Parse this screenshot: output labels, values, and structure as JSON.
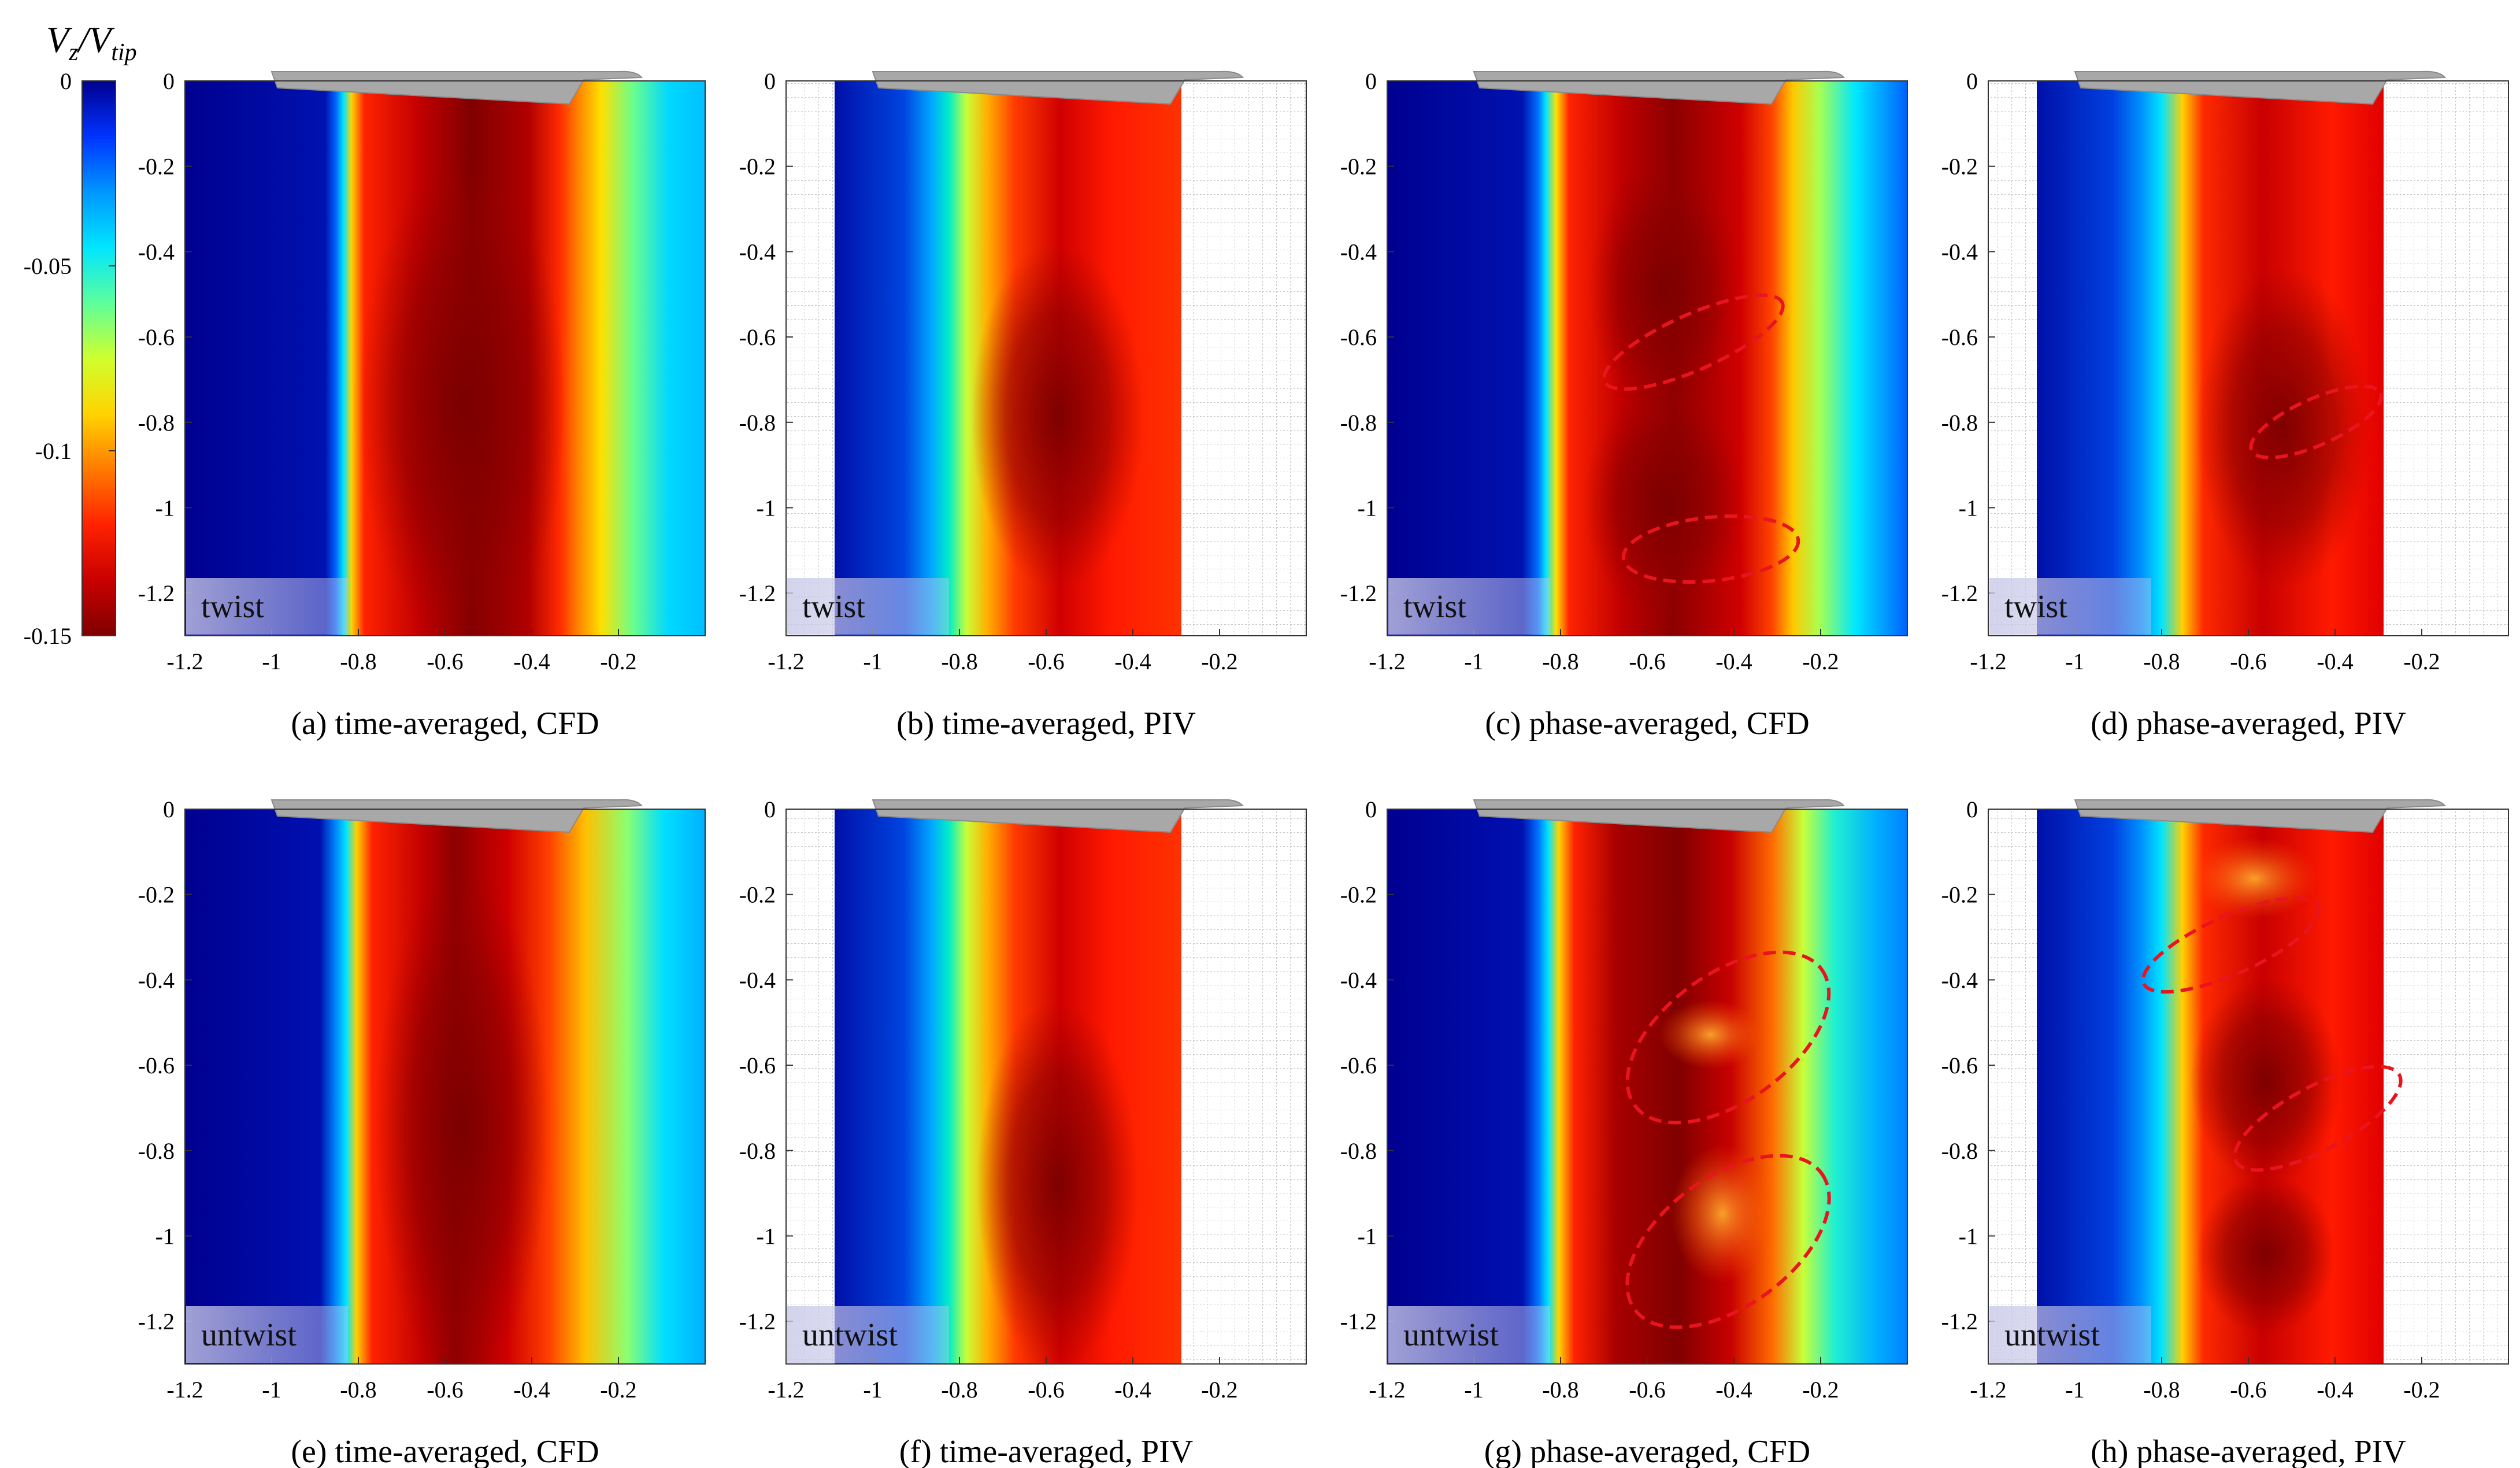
{
  "colorbar": {
    "title_main": "V",
    "title_sub1": "z",
    "title_sep": "/V",
    "title_sub2": "tip",
    "ticks": [
      {
        "value": 0,
        "label": "0"
      },
      {
        "value": -0.05,
        "label": "-0.05"
      },
      {
        "value": -0.1,
        "label": "-0.1"
      },
      {
        "value": -0.15,
        "label": "-0.15"
      }
    ],
    "range": [
      -0.15,
      0
    ],
    "colormap": [
      "#7f0000",
      "#c90000",
      "#ff2200",
      "#ff7a00",
      "#ffd400",
      "#cfff2e",
      "#5cff9c",
      "#00e5ff",
      "#0096ff",
      "#0033ff",
      "#00008f"
    ]
  },
  "axes": {
    "x_ticks": [
      {
        "value": -1.2,
        "label": "-1.2"
      },
      {
        "value": -1,
        "label": "-1"
      },
      {
        "value": -0.8,
        "label": "-0.8"
      },
      {
        "value": -0.6,
        "label": "-0.6"
      },
      {
        "value": -0.4,
        "label": "-0.4"
      },
      {
        "value": -0.2,
        "label": "-0.2"
      }
    ],
    "y_ticks": [
      {
        "value": 0,
        "label": "0"
      },
      {
        "value": -0.2,
        "label": "-0.2"
      },
      {
        "value": -0.4,
        "label": "-0.4"
      },
      {
        "value": -0.6,
        "label": "-0.6"
      },
      {
        "value": -0.8,
        "label": "-0.8"
      },
      {
        "value": -1,
        "label": "-1"
      },
      {
        "value": -1.2,
        "label": "-1.2"
      }
    ],
    "xlim": [
      -1.2,
      0
    ],
    "ylim": [
      -1.3,
      0
    ]
  },
  "chart_data": [
    {
      "type": "heatmap",
      "id": "a",
      "caption": "(a) time-averaged, CFD",
      "label": "twist",
      "source": "CFD",
      "averaging": "time",
      "field_x_range": [
        -1.2,
        0
      ],
      "core_x": -0.55,
      "wake_edges_x": [
        -0.85,
        -0.3
      ],
      "dashed_ellipses": 0
    },
    {
      "type": "heatmap",
      "id": "b",
      "caption": "(b) time-averaged, PIV",
      "label": "twist",
      "source": "PIV",
      "averaging": "time",
      "field_x_range": [
        -1.08,
        -0.28
      ],
      "core_x": -0.55,
      "wake_edges_x": [
        -0.82,
        -0.28
      ],
      "dashed_ellipses": 0
    },
    {
      "type": "heatmap",
      "id": "c",
      "caption": "(c) phase-averaged, CFD",
      "label": "twist",
      "source": "CFD",
      "averaging": "phase",
      "field_x_range": [
        -1.2,
        0
      ],
      "core_x": -0.55,
      "wake_edges_x": [
        -0.82,
        -0.22
      ],
      "dashed_ellipses": 2
    },
    {
      "type": "heatmap",
      "id": "d",
      "caption": "(d) phase-averaged, PIV",
      "label": "twist",
      "source": "PIV",
      "averaging": "phase",
      "field_x_range": [
        -1.08,
        -0.28
      ],
      "core_x": -0.5,
      "wake_edges_x": [
        -0.8,
        -0.28
      ],
      "dashed_ellipses": 1
    },
    {
      "type": "heatmap",
      "id": "e",
      "caption": "(e) time-averaged, CFD",
      "label": "untwist",
      "source": "CFD",
      "averaging": "time",
      "field_x_range": [
        -1.2,
        0
      ],
      "core_x": -0.6,
      "wake_edges_x": [
        -0.85,
        -0.35
      ],
      "dashed_ellipses": 0
    },
    {
      "type": "heatmap",
      "id": "f",
      "caption": "(f) time-averaged, PIV",
      "label": "untwist",
      "source": "PIV",
      "averaging": "time",
      "field_x_range": [
        -1.08,
        -0.28
      ],
      "core_x": -0.55,
      "wake_edges_x": [
        -0.82,
        -0.28
      ],
      "dashed_ellipses": 0
    },
    {
      "type": "heatmap",
      "id": "g",
      "caption": "(g) phase-averaged, CFD",
      "label": "untwist",
      "source": "CFD",
      "averaging": "phase",
      "field_x_range": [
        -1.2,
        0
      ],
      "core_x": -0.6,
      "wake_edges_x": [
        -0.82,
        -0.28
      ],
      "dashed_ellipses": 2
    },
    {
      "type": "heatmap",
      "id": "h",
      "caption": "(h) phase-averaged, PIV",
      "label": "untwist",
      "source": "PIV",
      "averaging": "phase",
      "field_x_range": [
        -1.08,
        -0.28
      ],
      "core_x": -0.55,
      "wake_edges_x": [
        -0.8,
        -0.28
      ],
      "dashed_ellipses": 2
    }
  ]
}
